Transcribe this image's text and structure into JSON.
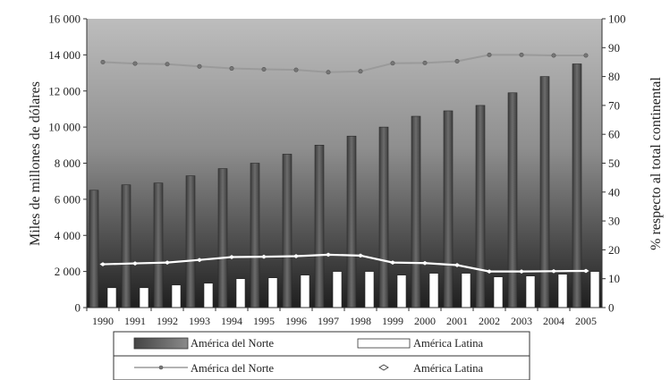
{
  "chart_data": {
    "type": "bar",
    "categories": [
      "1990",
      "1991",
      "1992",
      "1993",
      "1994",
      "1995",
      "1996",
      "1997",
      "1998",
      "1999",
      "2000",
      "2001",
      "2002",
      "2003",
      "2004",
      "2005"
    ],
    "ylabel": "Miles de millones de dólares",
    "y2label": "% respecto al total continental",
    "ylim": [
      0,
      16000
    ],
    "y2lim": [
      0,
      100
    ],
    "yticks": [
      "0",
      "2 000",
      "4 000",
      "6 000",
      "8 000",
      "10 000",
      "12 000",
      "14 000",
      "16 000"
    ],
    "y2ticks": [
      "0",
      "10",
      "20",
      "30",
      "40",
      "50",
      "60",
      "70",
      "80",
      "90",
      "100"
    ],
    "series": [
      {
        "name": "América del Norte",
        "kind": "bar",
        "axis": "left",
        "color": "#555555",
        "values": [
          6500,
          6800,
          6900,
          7300,
          7700,
          8000,
          8500,
          9000,
          9500,
          10000,
          10600,
          10900,
          11200,
          11900,
          12800,
          13500
        ]
      },
      {
        "name": "América Latina",
        "kind": "bar",
        "axis": "left",
        "color": "#ffffff",
        "values": [
          1100,
          1100,
          1250,
          1350,
          1600,
          1650,
          1800,
          2000,
          2000,
          1800,
          1900,
          1900,
          1700,
          1750,
          1850,
          2000
        ]
      },
      {
        "name": "América del Norte",
        "kind": "line",
        "axis": "right",
        "color": "#9a9a9a",
        "values": [
          85,
          84.5,
          84.3,
          83.5,
          82.8,
          82.5,
          82.3,
          81.5,
          81.8,
          84.6,
          84.7,
          85.3,
          87.5,
          87.5,
          87.3,
          87.3
        ]
      },
      {
        "name": "América Latina",
        "kind": "line",
        "axis": "right",
        "color": "#ffffff",
        "values": [
          15,
          15.3,
          15.6,
          16.5,
          17.5,
          17.6,
          17.8,
          18.3,
          18,
          15.6,
          15.4,
          14.7,
          12.5,
          12.5,
          12.6,
          12.7
        ]
      }
    ],
    "legend": "bottom"
  }
}
